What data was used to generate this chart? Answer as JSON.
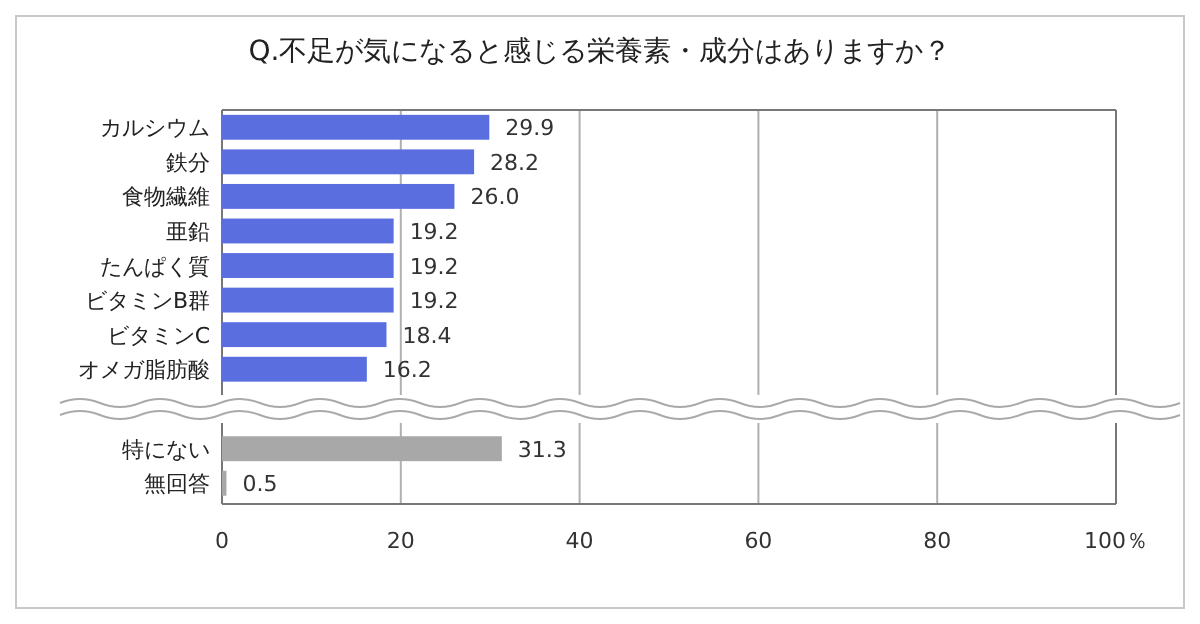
{
  "chart_data": {
    "type": "bar",
    "orientation": "horizontal",
    "title": "Q.不足が気になると感じる栄養素・成分はありますか？",
    "categories": [
      "カルシウム",
      "鉄分",
      "食物繊維",
      "亜鉛",
      "たんぱく質",
      "ビタミンB群",
      "ビタミンC",
      "オメガ脂肪酸",
      "特にない",
      "無回答"
    ],
    "values": [
      29.9,
      28.2,
      26.0,
      19.2,
      19.2,
      19.2,
      18.4,
      16.2,
      31.3,
      0.5
    ],
    "value_labels": [
      "29.9",
      "28.2",
      "26.0",
      "19.2",
      "19.2",
      "19.2",
      "18.4",
      "16.2",
      "31.3",
      "0.5"
    ],
    "colors": [
      "#5a6ee0",
      "#5a6ee0",
      "#5a6ee0",
      "#5a6ee0",
      "#5a6ee0",
      "#5a6ee0",
      "#5a6ee0",
      "#5a6ee0",
      "#a8a8a8",
      "#a8a8a8"
    ],
    "xlim": [
      0,
      100
    ],
    "xticks": [
      0,
      20,
      40,
      60,
      80,
      {
        "value": 100,
        "label": "100％"
      }
    ],
    "grid": "x"
  }
}
